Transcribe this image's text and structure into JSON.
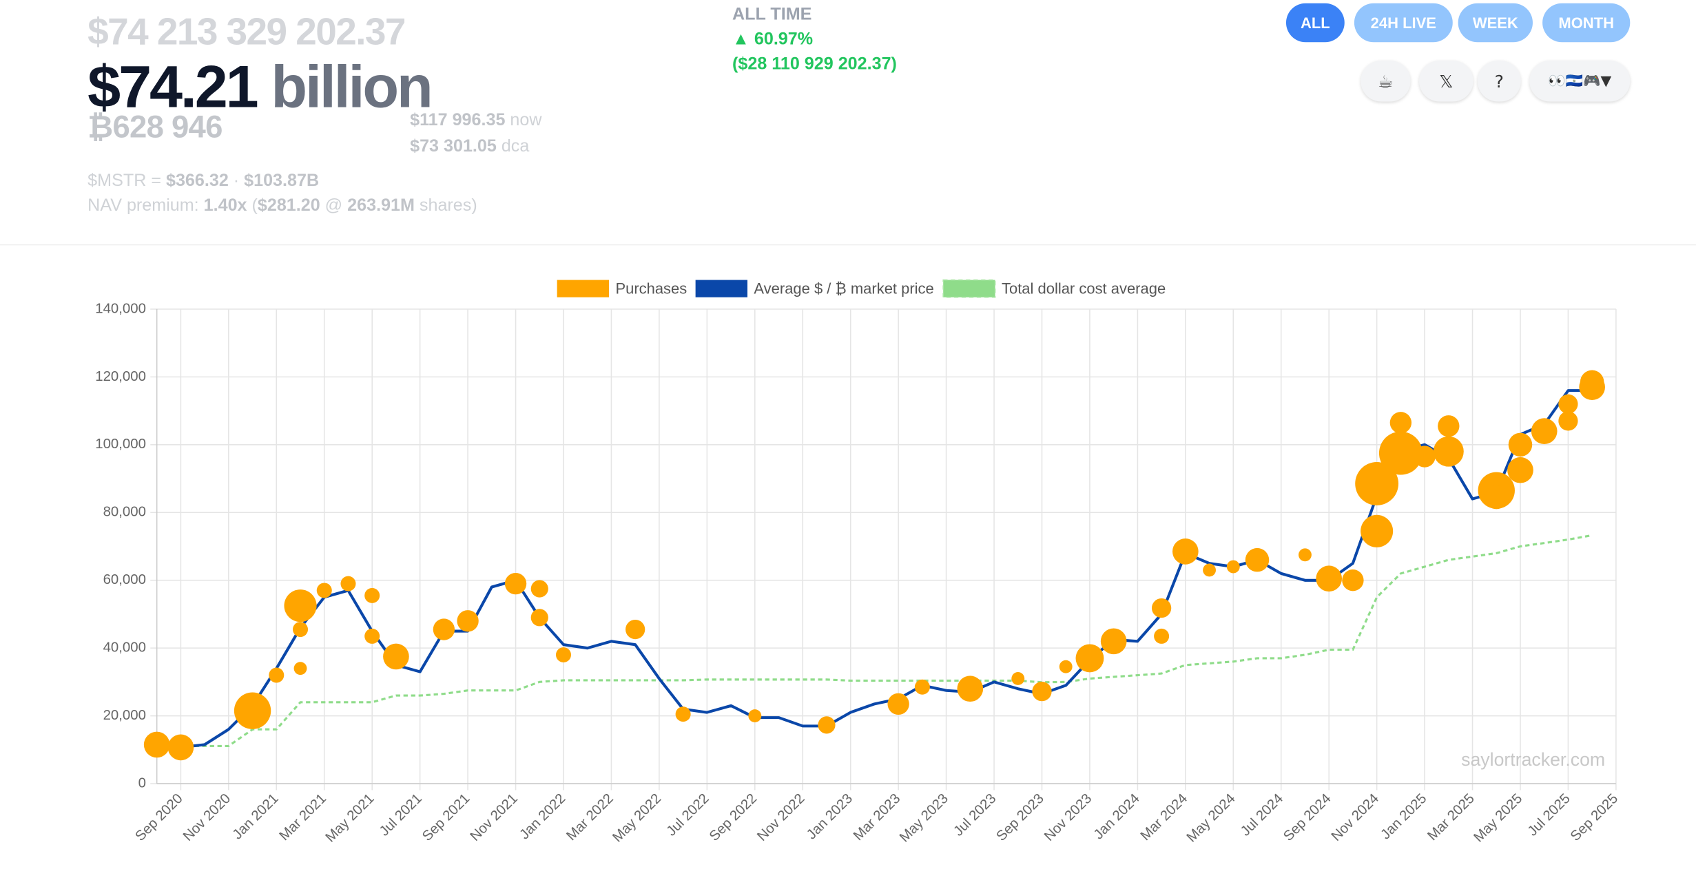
{
  "header": {
    "total_exact": "$74 213 329 202.37",
    "total_short": "$74.21",
    "total_unit": "billion",
    "btc_holdings": "₿628 946",
    "price_now": "$117 996.35",
    "price_now_label": "now",
    "price_dca": "$73 301.05",
    "price_dca_label": "dca",
    "mstr_label": "$MSTR = ",
    "mstr_price": "$366.32",
    "mstr_sep": " · ",
    "mstr_cap": "$103.87B",
    "nav_label": "NAV premium: ",
    "nav_value": "1.40x",
    "nav_open": " (",
    "nav_price": "$281.20",
    "nav_at": " @ ",
    "nav_shares": "263.91M",
    "nav_close": " shares)",
    "period_label": "ALL TIME",
    "change_pct": "▲ 60.97%",
    "change_abs": "($28 110 929 202.37)"
  },
  "nav": {
    "buttons": [
      "ALL",
      "24H LIVE",
      "WEEK",
      "MONTH"
    ],
    "icons": [
      "☕",
      "𝕏",
      "?",
      "👀🇸🇻🎮▼"
    ]
  },
  "chart_data": {
    "type": "line",
    "annotation": "saylortracker.com",
    "grid": true,
    "x": [
      "2020-08",
      "2020-09",
      "2020-10",
      "2020-11",
      "2020-12",
      "2021-01",
      "2021-02",
      "2021-03",
      "2021-04",
      "2021-05",
      "2021-06",
      "2021-07",
      "2021-08",
      "2021-09",
      "2021-10",
      "2021-11",
      "2021-12",
      "2022-01",
      "2022-02",
      "2022-03",
      "2022-04",
      "2022-05",
      "2022-06",
      "2022-07",
      "2022-08",
      "2022-09",
      "2022-10",
      "2022-11",
      "2022-12",
      "2023-01",
      "2023-02",
      "2023-03",
      "2023-04",
      "2023-05",
      "2023-06",
      "2023-07",
      "2023-08",
      "2023-09",
      "2023-10",
      "2023-11",
      "2023-12",
      "2024-01",
      "2024-02",
      "2024-03",
      "2024-04",
      "2024-05",
      "2024-06",
      "2024-07",
      "2024-08",
      "2024-09",
      "2024-10",
      "2024-11",
      "2024-12",
      "2025-01",
      "2025-02",
      "2025-03",
      "2025-04",
      "2025-05",
      "2025-06",
      "2025-07",
      "2025-08"
    ],
    "xlim": [
      "2020-08",
      "2025-09"
    ],
    "xticks": [
      {
        "value": "2020-09",
        "label": "Sep 2020"
      },
      {
        "value": "2020-11",
        "label": "Nov 2020"
      },
      {
        "value": "2021-01",
        "label": "Jan 2021"
      },
      {
        "value": "2021-03",
        "label": "Mar 2021"
      },
      {
        "value": "2021-05",
        "label": "May 2021"
      },
      {
        "value": "2021-07",
        "label": "Jul 2021"
      },
      {
        "value": "2021-09",
        "label": "Sep 2021"
      },
      {
        "value": "2021-11",
        "label": "Nov 2021"
      },
      {
        "value": "2022-01",
        "label": "Jan 2022"
      },
      {
        "value": "2022-03",
        "label": "Mar 2022"
      },
      {
        "value": "2022-05",
        "label": "May 2022"
      },
      {
        "value": "2022-07",
        "label": "Jul 2022"
      },
      {
        "value": "2022-09",
        "label": "Sep 2022"
      },
      {
        "value": "2022-11",
        "label": "Nov 2022"
      },
      {
        "value": "2023-01",
        "label": "Jan 2023"
      },
      {
        "value": "2023-03",
        "label": "Mar 2023"
      },
      {
        "value": "2023-05",
        "label": "May 2023"
      },
      {
        "value": "2023-07",
        "label": "Jul 2023"
      },
      {
        "value": "2023-09",
        "label": "Sep 2023"
      },
      {
        "value": "2023-11",
        "label": "Nov 2023"
      },
      {
        "value": "2024-01",
        "label": "Jan 2024"
      },
      {
        "value": "2024-03",
        "label": "Mar 2024"
      },
      {
        "value": "2024-05",
        "label": "May 2024"
      },
      {
        "value": "2024-07",
        "label": "Jul 2024"
      },
      {
        "value": "2024-09",
        "label": "Sep 2024"
      },
      {
        "value": "2024-11",
        "label": "Nov 2024"
      },
      {
        "value": "2025-01",
        "label": "Jan 2025"
      },
      {
        "value": "2025-03",
        "label": "Mar 2025"
      },
      {
        "value": "2025-05",
        "label": "May 2025"
      },
      {
        "value": "2025-07",
        "label": "Jul 2025"
      },
      {
        "value": "2025-09",
        "label": "Sep 2025"
      }
    ],
    "ylim": [
      0,
      140000
    ],
    "yticks": [
      0,
      {
        "value": 20000,
        "label": "20,000"
      },
      {
        "value": 40000,
        "label": "40,000"
      },
      {
        "value": 60000,
        "label": "60,000"
      },
      {
        "value": 80000,
        "label": "80,000"
      },
      {
        "value": 100000,
        "label": "100,000"
      },
      {
        "value": 120000,
        "label": "120,000"
      },
      {
        "value": 140000,
        "label": "140,000"
      }
    ],
    "series": [
      {
        "name": "Purchases",
        "type": "bubble",
        "color": "#ffa500",
        "x": [
          "2020-08",
          "2020-09",
          "2020-12",
          "2020-12",
          "2021-01",
          "2021-02",
          "2021-02",
          "2021-02",
          "2021-03",
          "2021-04",
          "2021-05",
          "2021-05",
          "2021-06",
          "2021-08",
          "2021-09",
          "2021-11",
          "2021-12",
          "2021-12",
          "2022-01",
          "2022-04",
          "2022-06",
          "2022-09",
          "2022-12",
          "2023-03",
          "2023-04",
          "2023-06",
          "2023-08",
          "2023-09",
          "2023-10",
          "2023-11",
          "2023-12",
          "2024-02",
          "2024-02",
          "2024-03",
          "2024-04",
          "2024-05",
          "2024-06",
          "2024-08",
          "2024-09",
          "2024-10",
          "2024-11",
          "2024-11",
          "2024-12",
          "2024-12",
          "2025-01",
          "2025-02",
          "2025-02",
          "2025-04",
          "2025-04",
          "2025-05",
          "2025-05",
          "2025-06",
          "2025-06",
          "2025-07",
          "2025-07",
          "2025-08",
          "2025-08"
        ],
        "values": [
          11500,
          10700,
          19500,
          21500,
          32000,
          34000,
          52500,
          45500,
          57000,
          59000,
          55500,
          43500,
          37500,
          45500,
          48000,
          59000,
          57500,
          49000,
          38000,
          45500,
          20500,
          20000,
          17300,
          23500,
          28500,
          28000,
          31000,
          27200,
          34500,
          37000,
          42000,
          43500,
          51800,
          68500,
          63000,
          64000,
          66000,
          67500,
          60500,
          60000,
          74500,
          88500,
          97500,
          106500,
          96500,
          105500,
          98000,
          86500,
          84500,
          92500,
          100000,
          104000,
          103500,
          107000,
          112000,
          118500,
          117000
        ],
        "sizes": [
          19900,
          19900,
          8900,
          40000,
          6800,
          5000,
          31100,
          6800,
          6800,
          6800,
          6800,
          6800,
          19900,
          13800,
          13800,
          13800,
          8900,
          8900,
          6800,
          11200,
          6800,
          5000,
          8900,
          13800,
          6800,
          19900,
          5000,
          11200,
          5000,
          23400,
          19900,
          6800,
          11200,
          19900,
          5000,
          5000,
          16700,
          5000,
          19900,
          13800,
          31100,
          55400,
          55400,
          13800,
          13800,
          13800,
          27100,
          40000,
          16700,
          19900,
          16700,
          19900,
          8900,
          11200,
          11200,
          16700,
          19900
        ]
      },
      {
        "name": "Average $ / ₿ market price",
        "type": "line",
        "color": "#0a47a9",
        "values": [
          11500,
          10700,
          11500,
          16000,
          23000,
          34000,
          46000,
          55000,
          57000,
          45000,
          35000,
          33000,
          45000,
          45000,
          58000,
          60000,
          49000,
          41000,
          40000,
          42000,
          41000,
          31000,
          22000,
          21000,
          23000,
          19500,
          19500,
          17000,
          17000,
          21000,
          23500,
          25000,
          29000,
          27500,
          27000,
          30000,
          28000,
          26500,
          29000,
          36500,
          42500,
          42000,
          50000,
          68000,
          65000,
          64000,
          66000,
          62000,
          60000,
          60000,
          65000,
          85000,
          98000,
          100000,
          96000,
          84000,
          86000,
          103000,
          106000,
          116000,
          116000
        ]
      },
      {
        "name": "Total dollar cost average",
        "type": "line",
        "color": "#8fdc8a",
        "dashed": true,
        "values": [
          11100,
          11100,
          11100,
          11100,
          16000,
          16000,
          24000,
          24000,
          24000,
          24000,
          26000,
          26000,
          26500,
          27500,
          27500,
          27500,
          30000,
          30500,
          30500,
          30500,
          30500,
          30500,
          30500,
          30700,
          30700,
          30700,
          30700,
          30700,
          30700,
          30400,
          30400,
          30400,
          30400,
          30400,
          30400,
          30400,
          30400,
          29900,
          30000,
          31000,
          31500,
          32000,
          32500,
          35000,
          35500,
          36000,
          37000,
          37000,
          38000,
          39500,
          39500,
          55000,
          62000,
          64000,
          66000,
          67000,
          68000,
          70000,
          71000,
          72000,
          73300
        ]
      }
    ]
  }
}
